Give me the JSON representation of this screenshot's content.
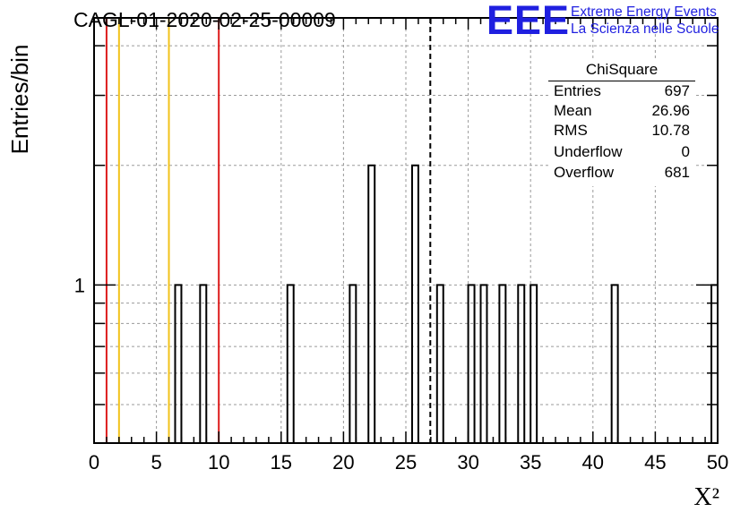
{
  "header": {
    "run_title": "CAGL-01-2020-02-25-00009"
  },
  "logo": {
    "mark": "EEE",
    "line1": "Extreme Energy Events",
    "line2": "La Scienza nelle Scuole",
    "color": "#1f1fe0"
  },
  "stats_box": {
    "title": "ChiSquare",
    "rows": [
      {
        "label": "Entries",
        "value": "697"
      },
      {
        "label": "Mean",
        "value": "26.96"
      },
      {
        "label": "RMS",
        "value": "10.78"
      },
      {
        "label": "Underflow",
        "value": "0"
      },
      {
        "label": "Overflow",
        "value": "681"
      }
    ]
  },
  "chart_data": {
    "type": "bar",
    "title": "",
    "xlabel": "X²",
    "ylabel": "Entries/bin",
    "xlim": [
      0,
      50
    ],
    "ylim": [
      0.4,
      4.7
    ],
    "yscale": "log",
    "bin_width": 0.5,
    "x_ticks": [
      "0",
      "5",
      "10",
      "15",
      "20",
      "25",
      "30",
      "35",
      "40",
      "45",
      "50"
    ],
    "y_ticks": [
      "1"
    ],
    "grid": true,
    "histogram": [
      {
        "x": 6.5,
        "count": 1
      },
      {
        "x": 8.5,
        "count": 1
      },
      {
        "x": 15.5,
        "count": 1
      },
      {
        "x": 20.5,
        "count": 1
      },
      {
        "x": 22.0,
        "count": 2
      },
      {
        "x": 25.5,
        "count": 2
      },
      {
        "x": 27.5,
        "count": 1
      },
      {
        "x": 30.0,
        "count": 1
      },
      {
        "x": 31.0,
        "count": 1
      },
      {
        "x": 32.5,
        "count": 1
      },
      {
        "x": 34.0,
        "count": 1
      },
      {
        "x": 35.0,
        "count": 1
      },
      {
        "x": 41.5,
        "count": 1
      },
      {
        "x": 49.5,
        "count": 1
      }
    ],
    "reference_lines": [
      {
        "x": 1,
        "color": "#dd1c1c",
        "style": "solid"
      },
      {
        "x": 2,
        "color": "#f2c21b",
        "style": "solid"
      },
      {
        "x": 6,
        "color": "#f2c21b",
        "style": "solid"
      },
      {
        "x": 10,
        "color": "#dd1c1c",
        "style": "solid"
      },
      {
        "x": 26.96,
        "color": "#000000",
        "style": "dashed"
      }
    ]
  }
}
